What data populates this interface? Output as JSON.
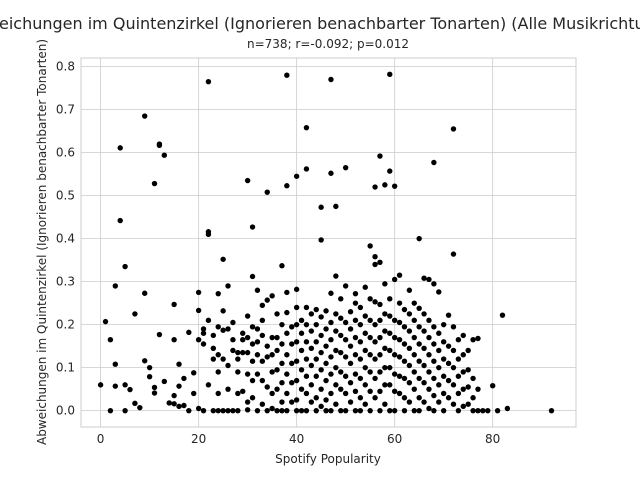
{
  "chart_data": {
    "type": "scatter",
    "title": "Abweichungen im Quintenzirkel (Ignorieren benachbarter Tonarten) (Alle Musikrichtungen)",
    "subtitle": "n=738; r=-0.092; p=0.012",
    "xlabel": "Spotify Popularity",
    "ylabel": "Abweichungen im Quintenzirkel (Ignorieren benachbarter Tonarten)",
    "xlim": [
      -4,
      97
    ],
    "ylim": [
      -0.038,
      0.82
    ],
    "xticks": [
      0,
      20,
      40,
      60,
      80
    ],
    "yticks": [
      0.0,
      0.1,
      0.2,
      0.3,
      0.4,
      0.5,
      0.6,
      0.7,
      0.8
    ],
    "xtick_labels": [
      "0",
      "20",
      "40",
      "60",
      "80"
    ],
    "ytick_labels": [
      "0.0",
      "0.1",
      "0.2",
      "0.3",
      "0.4",
      "0.5",
      "0.6",
      "0.7",
      "0.8"
    ],
    "grid": true,
    "point_color": "#000000",
    "points": [
      [
        0,
        0.06
      ],
      [
        1,
        0.207
      ],
      [
        2,
        0
      ],
      [
        2,
        0.165
      ],
      [
        3,
        0.29
      ],
      [
        3,
        0.108
      ],
      [
        3,
        0.057
      ],
      [
        4,
        0.611
      ],
      [
        4,
        0.442
      ],
      [
        5,
        0.335
      ],
      [
        5,
        0.06
      ],
      [
        5,
        0
      ],
      [
        6,
        0.049
      ],
      [
        7,
        0.225
      ],
      [
        7,
        0.017
      ],
      [
        8,
        0.007
      ],
      [
        9,
        0.685
      ],
      [
        9,
        0.116
      ],
      [
        9,
        0.273
      ],
      [
        10,
        0.079
      ],
      [
        10,
        0.1
      ],
      [
        11,
        0.528
      ],
      [
        11,
        0.054
      ],
      [
        11,
        0.041
      ],
      [
        12,
        0.62
      ],
      [
        12,
        0.617
      ],
      [
        12,
        0.177
      ],
      [
        13,
        0.594
      ],
      [
        13,
        0.068
      ],
      [
        14,
        0.018
      ],
      [
        15,
        0.247
      ],
      [
        15,
        0.016
      ],
      [
        15,
        0.035
      ],
      [
        15,
        0.165
      ],
      [
        16,
        0.01
      ],
      [
        16,
        0.057
      ],
      [
        16,
        0.108
      ],
      [
        17,
        0.012
      ],
      [
        17,
        0.075
      ],
      [
        18,
        0
      ],
      [
        18,
        0.182
      ],
      [
        19,
        0.088
      ],
      [
        19,
        0.04
      ],
      [
        20,
        0.275
      ],
      [
        20,
        0.233
      ],
      [
        20,
        0.165
      ],
      [
        20,
        0.005
      ],
      [
        21,
        0.155
      ],
      [
        21,
        0.18
      ],
      [
        21,
        0.19
      ],
      [
        21,
        0
      ],
      [
        22,
        0.765
      ],
      [
        22,
        0.416
      ],
      [
        22,
        0.41
      ],
      [
        22,
        0.21
      ],
      [
        22,
        0.06
      ],
      [
        23,
        0.175
      ],
      [
        23,
        0.145
      ],
      [
        23,
        0.12
      ],
      [
        23,
        0
      ],
      [
        24,
        0.272
      ],
      [
        24,
        0.195
      ],
      [
        24,
        0.13
      ],
      [
        24,
        0.09
      ],
      [
        24,
        0.04
      ],
      [
        24,
        0
      ],
      [
        25,
        0.352
      ],
      [
        25,
        0.232
      ],
      [
        25,
        0.187
      ],
      [
        25,
        0.12
      ],
      [
        25,
        0
      ],
      [
        26,
        0.29
      ],
      [
        26,
        0.19
      ],
      [
        26,
        0.105
      ],
      [
        26,
        0.05
      ],
      [
        26,
        0
      ],
      [
        27,
        0.205
      ],
      [
        27,
        0.165
      ],
      [
        27,
        0.14
      ],
      [
        27,
        0
      ],
      [
        28,
        0.135
      ],
      [
        28,
        0.12
      ],
      [
        28,
        0.09
      ],
      [
        28,
        0.04
      ],
      [
        28,
        0
      ],
      [
        29,
        0.18
      ],
      [
        29,
        0.165
      ],
      [
        29,
        0.135
      ],
      [
        29,
        0.045
      ],
      [
        30,
        0.535
      ],
      [
        30,
        0.22
      ],
      [
        30,
        0.17
      ],
      [
        30,
        0.135
      ],
      [
        30,
        0.085
      ],
      [
        30,
        0.02
      ],
      [
        30,
        0.002
      ],
      [
        31,
        0.427
      ],
      [
        31,
        0.312
      ],
      [
        31,
        0.195
      ],
      [
        31,
        0.155
      ],
      [
        31,
        0.115
      ],
      [
        31,
        0.07
      ],
      [
        31,
        0.03
      ],
      [
        32,
        0.28
      ],
      [
        32,
        0.19
      ],
      [
        32,
        0.16
      ],
      [
        32,
        0.13
      ],
      [
        32,
        0.085
      ],
      [
        32,
        0
      ],
      [
        33,
        0.245
      ],
      [
        33,
        0.21
      ],
      [
        33,
        0.175
      ],
      [
        33,
        0.115
      ],
      [
        33,
        0.07
      ],
      [
        33,
        0.015
      ],
      [
        34,
        0.508
      ],
      [
        34,
        0.257
      ],
      [
        34,
        0.15
      ],
      [
        34,
        0.125
      ],
      [
        34,
        0.055
      ],
      [
        34,
        0
      ],
      [
        35,
        0.267
      ],
      [
        35,
        0.17
      ],
      [
        35,
        0.13
      ],
      [
        35,
        0.09
      ],
      [
        35,
        0.04
      ],
      [
        35,
        0.005
      ],
      [
        36,
        0.225
      ],
      [
        36,
        0.17
      ],
      [
        36,
        0.14
      ],
      [
        36,
        0.095
      ],
      [
        36,
        0.05
      ],
      [
        36,
        0
      ],
      [
        37,
        0.337
      ],
      [
        37,
        0.2
      ],
      [
        37,
        0.155
      ],
      [
        37,
        0.11
      ],
      [
        37,
        0.065
      ],
      [
        37,
        0.02
      ],
      [
        37,
        0
      ],
      [
        38,
        0.78
      ],
      [
        38,
        0.523
      ],
      [
        38,
        0.275
      ],
      [
        38,
        0.228
      ],
      [
        38,
        0.18
      ],
      [
        38,
        0.13
      ],
      [
        38,
        0.085
      ],
      [
        38,
        0.04
      ],
      [
        38,
        0
      ],
      [
        39,
        0.195
      ],
      [
        39,
        0.155
      ],
      [
        39,
        0.11
      ],
      [
        39,
        0.065
      ],
      [
        39,
        0.02
      ],
      [
        40,
        0.545
      ],
      [
        40,
        0.282
      ],
      [
        40,
        0.24
      ],
      [
        40,
        0.2
      ],
      [
        40,
        0.16
      ],
      [
        40,
        0.115
      ],
      [
        40,
        0.07
      ],
      [
        40,
        0.025
      ],
      [
        40,
        0
      ],
      [
        41,
        0.21
      ],
      [
        41,
        0.18
      ],
      [
        41,
        0.14
      ],
      [
        41,
        0.095
      ],
      [
        41,
        0.05
      ],
      [
        41,
        0
      ],
      [
        42,
        0.658
      ],
      [
        42,
        0.562
      ],
      [
        42,
        0.24
      ],
      [
        42,
        0.2
      ],
      [
        42,
        0.16
      ],
      [
        42,
        0.12
      ],
      [
        42,
        0.08
      ],
      [
        42,
        0.04
      ],
      [
        42,
        0
      ],
      [
        43,
        0.225
      ],
      [
        43,
        0.185
      ],
      [
        43,
        0.145
      ],
      [
        43,
        0.105
      ],
      [
        43,
        0.06
      ],
      [
        43,
        0.02
      ],
      [
        44,
        0.235
      ],
      [
        44,
        0.2
      ],
      [
        44,
        0.16
      ],
      [
        44,
        0.12
      ],
      [
        44,
        0.08
      ],
      [
        44,
        0.03
      ],
      [
        44,
        0
      ],
      [
        45,
        0.473
      ],
      [
        45,
        0.397
      ],
      [
        45,
        0.218
      ],
      [
        45,
        0.175
      ],
      [
        45,
        0.135
      ],
      [
        45,
        0.095
      ],
      [
        45,
        0.05
      ],
      [
        45,
        0.01
      ],
      [
        46,
        0.232
      ],
      [
        46,
        0.19
      ],
      [
        46,
        0.15
      ],
      [
        46,
        0.11
      ],
      [
        46,
        0.07
      ],
      [
        46,
        0.025
      ],
      [
        46,
        0
      ],
      [
        47,
        0.77
      ],
      [
        47,
        0.552
      ],
      [
        47,
        0.273
      ],
      [
        47,
        0.205
      ],
      [
        47,
        0.165
      ],
      [
        47,
        0.125
      ],
      [
        47,
        0.085
      ],
      [
        47,
        0.04
      ],
      [
        47,
        0
      ],
      [
        48,
        0.475
      ],
      [
        48,
        0.313
      ],
      [
        48,
        0.225
      ],
      [
        48,
        0.185
      ],
      [
        48,
        0.14
      ],
      [
        48,
        0.1
      ],
      [
        48,
        0.06
      ],
      [
        48,
        0.015
      ],
      [
        49,
        0.26
      ],
      [
        49,
        0.215
      ],
      [
        49,
        0.175
      ],
      [
        49,
        0.135
      ],
      [
        49,
        0.09
      ],
      [
        49,
        0.05
      ],
      [
        49,
        0
      ],
      [
        50,
        0.565
      ],
      [
        50,
        0.29
      ],
      [
        50,
        0.205
      ],
      [
        50,
        0.165
      ],
      [
        50,
        0.125
      ],
      [
        50,
        0.08
      ],
      [
        50,
        0.04
      ],
      [
        50,
        0
      ],
      [
        51,
        0.23
      ],
      [
        51,
        0.19
      ],
      [
        51,
        0.15
      ],
      [
        51,
        0.11
      ],
      [
        51,
        0.065
      ],
      [
        51,
        0.02
      ],
      [
        52,
        0.272
      ],
      [
        52,
        0.25
      ],
      [
        52,
        0.21
      ],
      [
        52,
        0.17
      ],
      [
        52,
        0.13
      ],
      [
        52,
        0.085
      ],
      [
        52,
        0.045
      ],
      [
        52,
        0
      ],
      [
        53,
        0.24
      ],
      [
        53,
        0.2
      ],
      [
        53,
        0.16
      ],
      [
        53,
        0.12
      ],
      [
        53,
        0.075
      ],
      [
        53,
        0.03
      ],
      [
        53,
        0
      ],
      [
        54,
        0.287
      ],
      [
        54,
        0.22
      ],
      [
        54,
        0.18
      ],
      [
        54,
        0.14
      ],
      [
        54,
        0.1
      ],
      [
        54,
        0.06
      ],
      [
        54,
        0.015
      ],
      [
        55,
        0.383
      ],
      [
        55,
        0.26
      ],
      [
        55,
        0.21
      ],
      [
        55,
        0.17
      ],
      [
        55,
        0.13
      ],
      [
        55,
        0.09
      ],
      [
        55,
        0.045
      ],
      [
        55,
        0
      ],
      [
        56,
        0.52
      ],
      [
        56,
        0.358
      ],
      [
        56,
        0.34
      ],
      [
        56,
        0.253
      ],
      [
        56,
        0.2
      ],
      [
        56,
        0.16
      ],
      [
        56,
        0.12
      ],
      [
        56,
        0.075
      ],
      [
        56,
        0.03
      ],
      [
        57,
        0.592
      ],
      [
        57,
        0.345
      ],
      [
        57,
        0.247
      ],
      [
        57,
        0.21
      ],
      [
        57,
        0.17
      ],
      [
        57,
        0.13
      ],
      [
        57,
        0.09
      ],
      [
        57,
        0.045
      ],
      [
        57,
        0
      ],
      [
        58,
        0.525
      ],
      [
        58,
        0.295
      ],
      [
        58,
        0.225
      ],
      [
        58,
        0.185
      ],
      [
        58,
        0.145
      ],
      [
        58,
        0.1
      ],
      [
        58,
        0.06
      ],
      [
        58,
        0.015
      ],
      [
        59,
        0.782
      ],
      [
        59,
        0.557
      ],
      [
        59,
        0.26
      ],
      [
        59,
        0.22
      ],
      [
        59,
        0.18
      ],
      [
        59,
        0.14
      ],
      [
        59,
        0.1
      ],
      [
        59,
        0.06
      ],
      [
        59,
        0
      ],
      [
        60,
        0.522
      ],
      [
        60,
        0.305
      ],
      [
        60,
        0.21
      ],
      [
        60,
        0.17
      ],
      [
        60,
        0.13
      ],
      [
        60,
        0.085
      ],
      [
        60,
        0.045
      ],
      [
        60,
        0
      ],
      [
        61,
        0.315
      ],
      [
        61,
        0.25
      ],
      [
        61,
        0.205
      ],
      [
        61,
        0.165
      ],
      [
        61,
        0.125
      ],
      [
        61,
        0.08
      ],
      [
        61,
        0.04
      ],
      [
        62,
        0.235
      ],
      [
        62,
        0.195
      ],
      [
        62,
        0.155
      ],
      [
        62,
        0.115
      ],
      [
        62,
        0.075
      ],
      [
        62,
        0.03
      ],
      [
        62,
        0
      ],
      [
        63,
        0.28
      ],
      [
        63,
        0.225
      ],
      [
        63,
        0.185
      ],
      [
        63,
        0.145
      ],
      [
        63,
        0.105
      ],
      [
        63,
        0.065
      ],
      [
        63,
        0.02
      ],
      [
        64,
        0.25
      ],
      [
        64,
        0.21
      ],
      [
        64,
        0.17
      ],
      [
        64,
        0.13
      ],
      [
        64,
        0.09
      ],
      [
        64,
        0.05
      ],
      [
        64,
        0
      ],
      [
        65,
        0.4
      ],
      [
        65,
        0.238
      ],
      [
        65,
        0.195
      ],
      [
        65,
        0.155
      ],
      [
        65,
        0.115
      ],
      [
        65,
        0.075
      ],
      [
        65,
        0.03
      ],
      [
        65,
        0
      ],
      [
        66,
        0.308
      ],
      [
        66,
        0.225
      ],
      [
        66,
        0.185
      ],
      [
        66,
        0.145
      ],
      [
        66,
        0.105
      ],
      [
        66,
        0.065
      ],
      [
        66,
        0.02
      ],
      [
        67,
        0.305
      ],
      [
        67,
        0.21
      ],
      [
        67,
        0.17
      ],
      [
        67,
        0.13
      ],
      [
        67,
        0.09
      ],
      [
        67,
        0.05
      ],
      [
        67,
        0.005
      ],
      [
        68,
        0.577
      ],
      [
        68,
        0.295
      ],
      [
        68,
        0.195
      ],
      [
        68,
        0.155
      ],
      [
        68,
        0.115
      ],
      [
        68,
        0.075
      ],
      [
        68,
        0.035
      ],
      [
        68,
        0
      ],
      [
        69,
        0.276
      ],
      [
        69,
        0.18
      ],
      [
        69,
        0.14
      ],
      [
        69,
        0.1
      ],
      [
        69,
        0.06
      ],
      [
        69,
        0.02
      ],
      [
        70,
        0.2
      ],
      [
        70,
        0.16
      ],
      [
        70,
        0.12
      ],
      [
        70,
        0.08
      ],
      [
        70,
        0.04
      ],
      [
        70,
        0
      ],
      [
        71,
        0.222
      ],
      [
        71,
        0.15
      ],
      [
        71,
        0.11
      ],
      [
        71,
        0.07
      ],
      [
        71,
        0.03
      ],
      [
        72,
        0.655
      ],
      [
        72,
        0.364
      ],
      [
        72,
        0.195
      ],
      [
        72,
        0.14
      ],
      [
        72,
        0.1
      ],
      [
        72,
        0.06
      ],
      [
        72,
        0.015
      ],
      [
        73,
        0.165
      ],
      [
        73,
        0.12
      ],
      [
        73,
        0.08
      ],
      [
        73,
        0.04
      ],
      [
        73,
        0
      ],
      [
        74,
        0.175
      ],
      [
        74,
        0.13
      ],
      [
        74,
        0.09
      ],
      [
        74,
        0.05
      ],
      [
        74,
        0.01
      ],
      [
        75,
        0.14
      ],
      [
        75,
        0.095
      ],
      [
        75,
        0.055
      ],
      [
        75,
        0.015
      ],
      [
        76,
        0.165
      ],
      [
        76,
        0.075
      ],
      [
        76,
        0.03
      ],
      [
        76,
        0
      ],
      [
        77,
        0.168
      ],
      [
        77,
        0.05
      ],
      [
        77,
        0
      ],
      [
        78,
        0
      ],
      [
        79,
        0
      ],
      [
        80,
        0.058
      ],
      [
        81,
        0
      ],
      [
        82,
        0.222
      ],
      [
        83,
        0.005
      ],
      [
        92,
        0
      ]
    ]
  }
}
